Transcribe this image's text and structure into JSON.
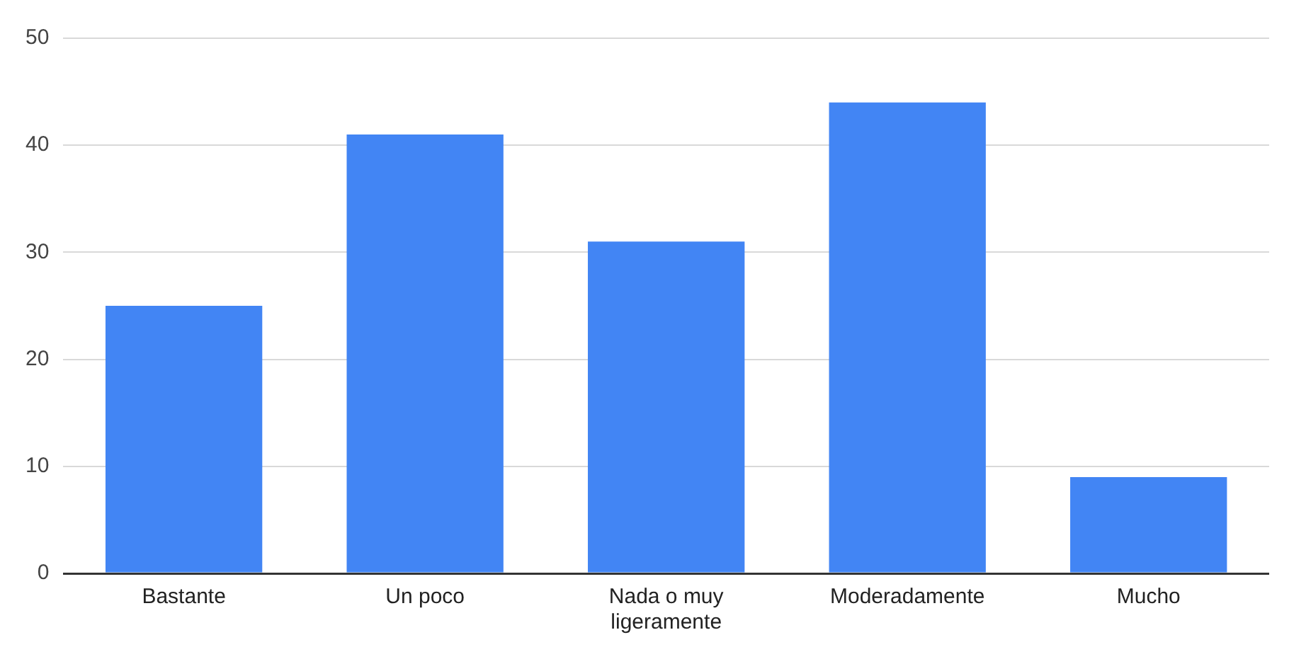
{
  "chart_data": {
    "type": "bar",
    "categories": [
      "Bastante",
      "Un poco",
      "Nada o muy ligeramente",
      "Moderadamente",
      "Mucho"
    ],
    "values": [
      25,
      41,
      31,
      44,
      9
    ],
    "color": "#4285f4",
    "ylim": [
      0,
      50
    ],
    "yticks": [
      0,
      10,
      20,
      30,
      40,
      50
    ],
    "grid": "y",
    "legend": false
  }
}
